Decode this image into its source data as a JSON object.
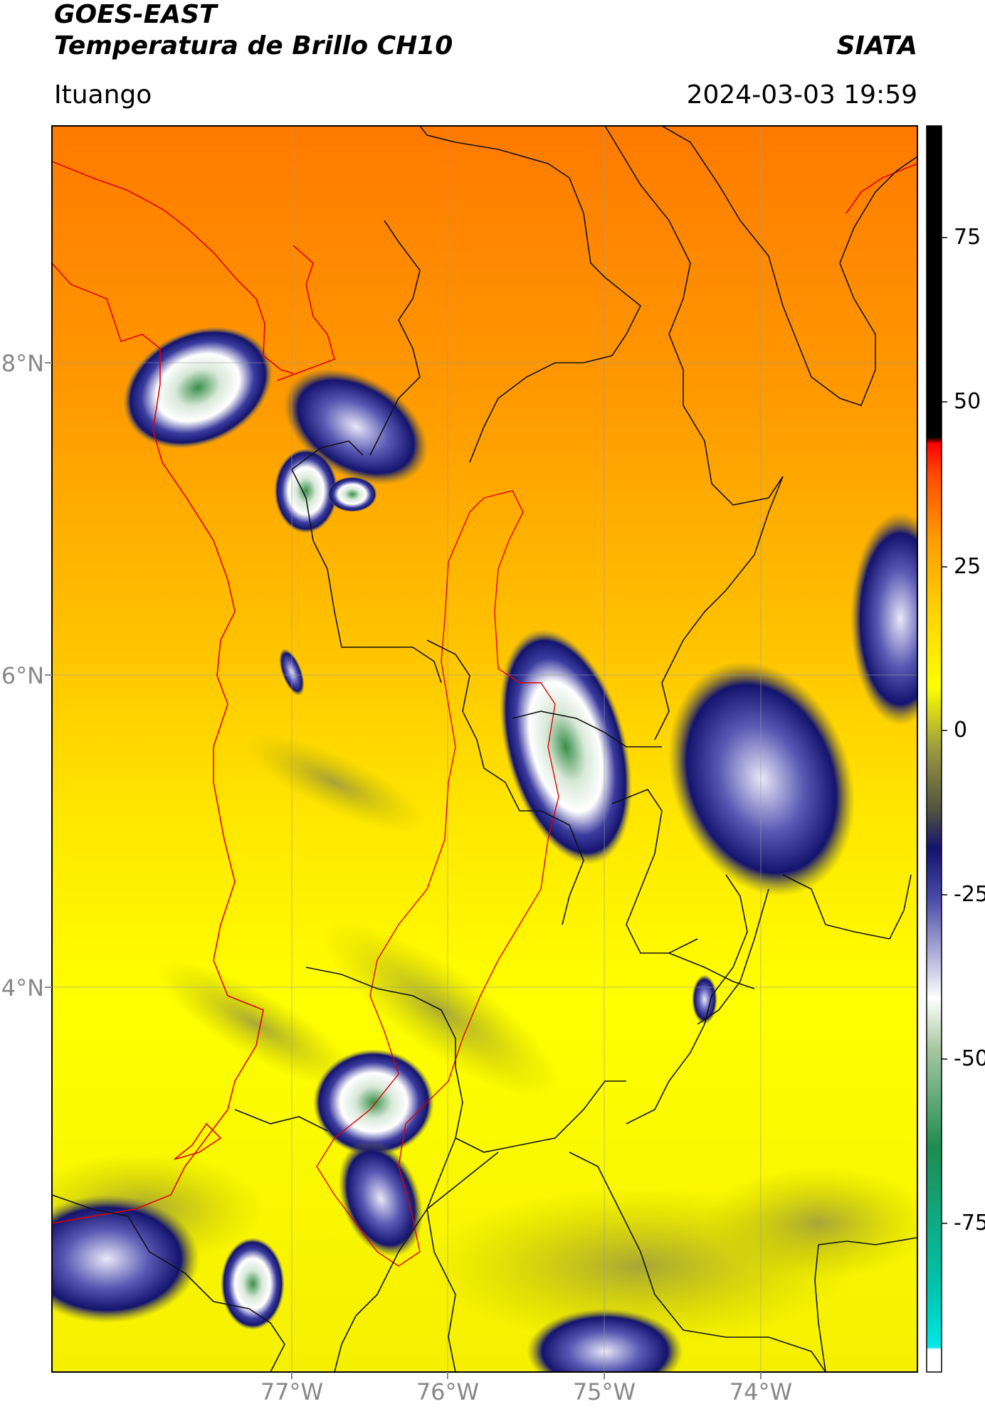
{
  "header": {
    "satellite": "GOES-EAST",
    "product": "Temperatura de Brillo CH10",
    "organization": "SIATA",
    "location": "Ituango",
    "datetime": "2024-03-03 19:59"
  },
  "map": {
    "lat_labels": [
      "8°N",
      "6°N",
      "4°N"
    ],
    "lon_labels": [
      "77°W",
      "76°W",
      "75°W",
      "74°W"
    ],
    "gridlines": true,
    "background_colors": {
      "warm": "#ff8c00",
      "mid": "#ffd000",
      "cool": "#ffff00"
    }
  },
  "colorbar": {
    "ticks": [
      "75",
      "50",
      "25",
      "0",
      "-25",
      "-50",
      "-75"
    ],
    "stops": [
      "#00e5e5",
      "#2f8f2f",
      "#ffffff",
      "#1a1a8c",
      "#ffff00",
      "#ff8c00",
      "#ff0000",
      "#000000"
    ]
  }
}
